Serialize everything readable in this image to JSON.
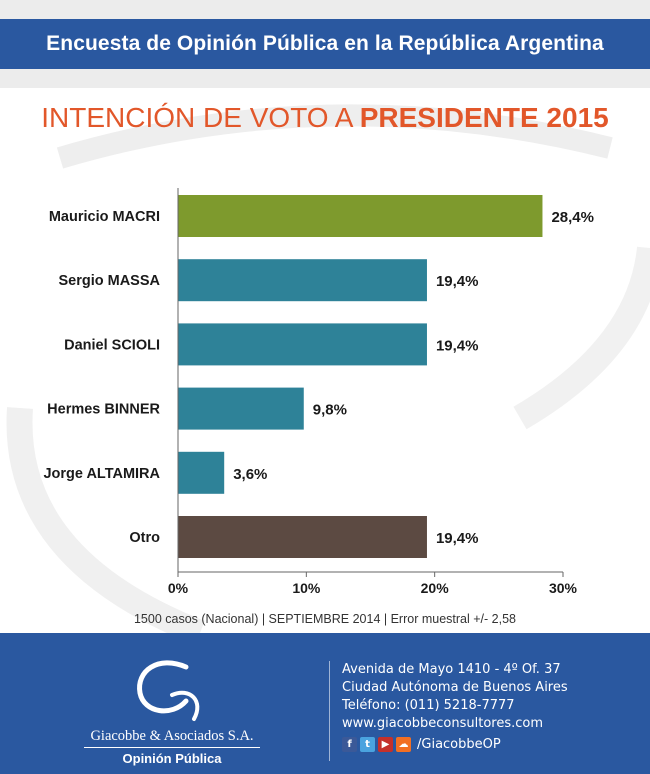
{
  "header": {
    "title": "Encuesta de Opinión Pública en la República Argentina"
  },
  "chart_title": {
    "part1": "INTENCIÓN DE VOTO A ",
    "part2": "PRESIDENTE 2015"
  },
  "chart_data": {
    "type": "bar",
    "orientation": "horizontal",
    "title": "INTENCIÓN DE VOTO A PRESIDENTE 2015",
    "categories": [
      "Mauricio MACRI",
      "Sergio MASSA",
      "Daniel SCIOLI",
      "Hermes BINNER",
      "Jorge ALTAMIRA",
      "Otro"
    ],
    "values": [
      28.4,
      19.4,
      19.4,
      9.8,
      3.6,
      19.4
    ],
    "value_labels": [
      "28,4%",
      "19,4%",
      "19,4%",
      "9,8%",
      "3,6%",
      "19,4%"
    ],
    "colors": [
      "#7e9a2d",
      "#2e8298",
      "#2e8298",
      "#2e8298",
      "#2e8298",
      "#5c4a42"
    ],
    "xlim": [
      0,
      30
    ],
    "x_ticks": [
      0,
      10,
      20,
      30
    ],
    "x_tick_labels": [
      "0%",
      "10%",
      "20%",
      "30%"
    ],
    "grid": false
  },
  "footnote": "1500 casos (Nacional) | SEPTIEMBRE 2014 | Error muestral +/- 2,58",
  "footer": {
    "company_name": "Giacobbe & Asociados S.A.",
    "company_sub": "Opinión Pública",
    "address1": "Avenida de Mayo 1410 - 4º Of. 37",
    "address2": "Ciudad Autónoma de Buenos Aires",
    "phone": "Teléfono: (011) 5218-7777",
    "website": "www.giacobbeconsultores.com",
    "social_handle": "/GiacobbeOP",
    "social_icons": [
      {
        "name": "facebook-icon",
        "glyph": "f",
        "color": "#3b5998"
      },
      {
        "name": "twitter-icon",
        "glyph": "t",
        "color": "#4aa3df"
      },
      {
        "name": "youtube-icon",
        "glyph": "▶",
        "color": "#c4302b"
      },
      {
        "name": "soundcloud-icon",
        "glyph": "☁",
        "color": "#f26f23"
      }
    ]
  }
}
